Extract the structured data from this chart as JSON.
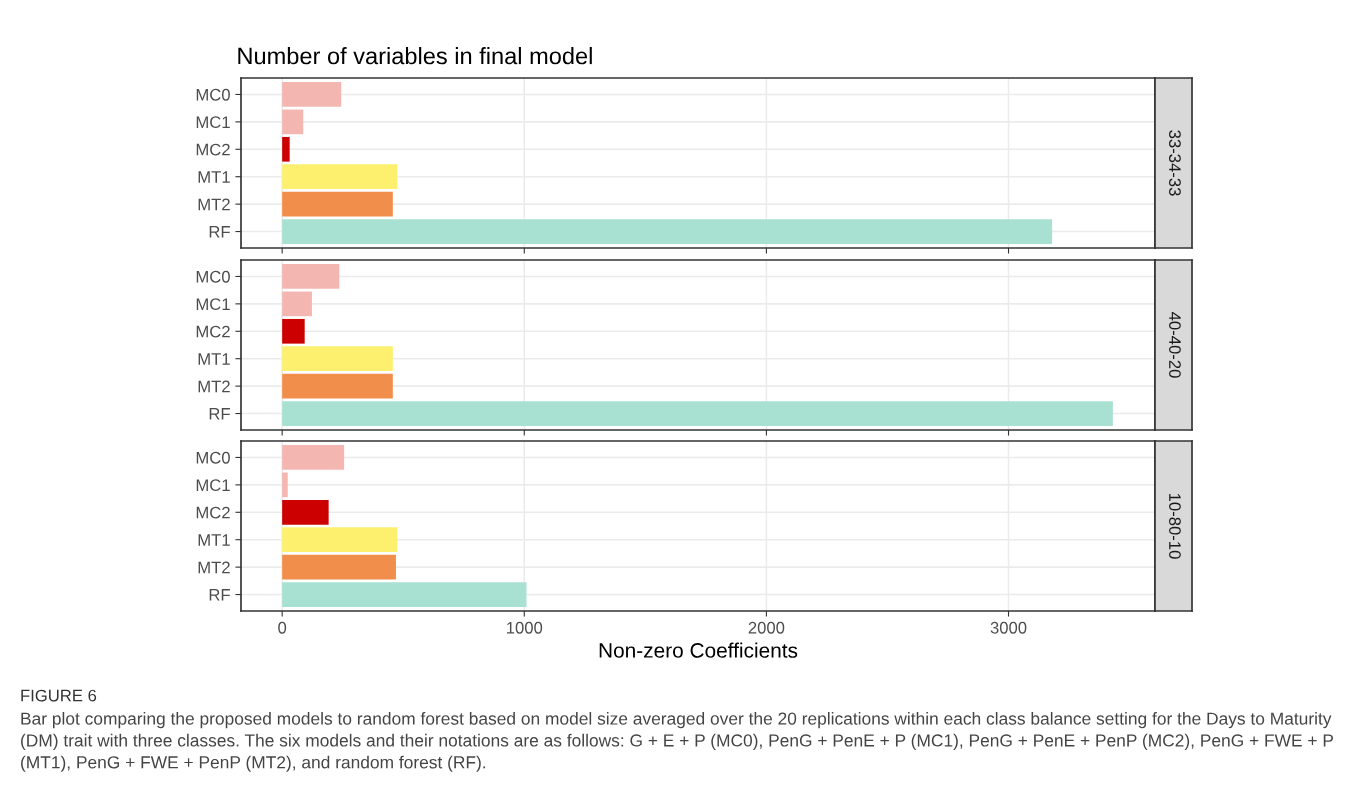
{
  "chart_data": [
    {
      "type": "bar",
      "orientation": "horizontal",
      "title": "Number of variables in final model",
      "y2label": "33-34-33",
      "categories": [
        "MC0",
        "MC1",
        "MC2",
        "MT1",
        "MT2",
        "RF"
      ],
      "values": [
        244,
        87,
        31,
        476,
        457,
        3180
      ],
      "colors": [
        "#f4b6b0",
        "#f4b6b0",
        "#cc0000",
        "#fdf06f",
        "#f28e4b",
        "#a8e0d2"
      ],
      "xlim": [
        -170,
        3605
      ],
      "xticks": [
        0,
        1000,
        2000,
        3000
      ],
      "grid": true,
      "tick_labels": "y"
    },
    {
      "type": "bar",
      "orientation": "horizontal",
      "y2label": "40-40-20",
      "categories": [
        "MC0",
        "MC1",
        "MC2",
        "MT1",
        "MT2",
        "RF"
      ],
      "values": [
        236,
        123,
        93,
        457,
        457,
        3431
      ],
      "colors": [
        "#f4b6b0",
        "#f4b6b0",
        "#cc0000",
        "#fdf06f",
        "#f28e4b",
        "#a8e0d2"
      ],
      "xlim": [
        -170,
        3605
      ],
      "xticks": [
        0,
        1000,
        2000,
        3000
      ],
      "grid": true,
      "tick_labels": "y"
    },
    {
      "type": "bar",
      "orientation": "horizontal",
      "y2label": "10-80-10",
      "xlabel": "Non-zero Coefficients",
      "categories": [
        "MC0",
        "MC1",
        "MC2",
        "MT1",
        "MT2",
        "RF"
      ],
      "values": [
        256,
        23,
        192,
        476,
        470,
        1009
      ],
      "colors": [
        "#f4b6b0",
        "#f4b6b0",
        "#cc0000",
        "#fdf06f",
        "#f28e4b",
        "#a8e0d2"
      ],
      "xlim": [
        -170,
        3605
      ],
      "xticks": [
        0,
        1000,
        2000,
        3000
      ],
      "grid": true,
      "annotations": [
        "FIGURE 6",
        "Bar plot comparing the proposed models to random forest based on model size averaged over the 20 replications within each class balance setting for the Days to Maturity (DM) trait with three classes. The six models and their notations are as follows: G + E + P (MC0), PenG + PenE + P (MC1), PenG + PenE + PenP (MC2), PenG + FWE + P (MT1), PenG + FWE + PenP (MT2), and random forest (RF)."
      ]
    }
  ]
}
